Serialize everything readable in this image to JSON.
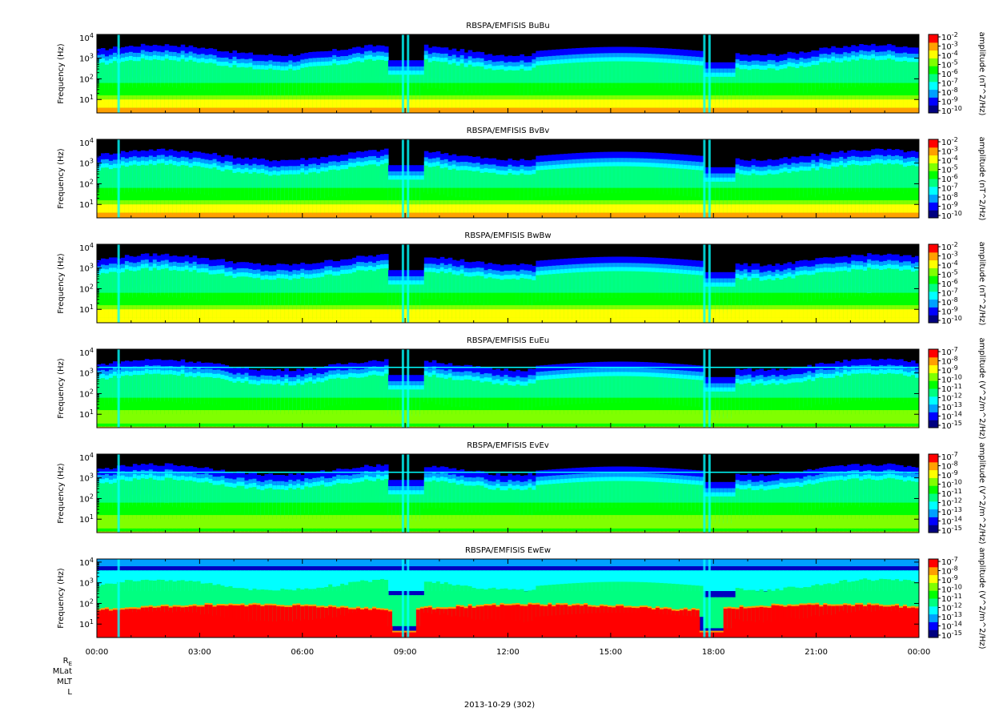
{
  "chart_data": [
    {
      "type": "heatmap",
      "title": "RBSPA/EMFISIS  BuBu",
      "ylabel": "Frequency (Hz)",
      "colorbar_label": "amplitude (nT^2/Hz)",
      "y_scale": "log",
      "y_ticks": [
        "10^1",
        "10^2",
        "10^3",
        "10^4"
      ],
      "colorbar_ticks": [
        "10^-2",
        "10^-3",
        "10^-4",
        "10^-5",
        "10^-6",
        "10^-7",
        "10^-8",
        "10^-9",
        "10^-10"
      ],
      "kind": "B"
    },
    {
      "type": "heatmap",
      "title": "RBSPA/EMFISIS  BvBv",
      "ylabel": "Frequency (Hz)",
      "colorbar_label": "amplitude (nT^2/Hz)",
      "y_scale": "log",
      "y_ticks": [
        "10^1",
        "10^2",
        "10^3",
        "10^4"
      ],
      "colorbar_ticks": [
        "10^-2",
        "10^-3",
        "10^-4",
        "10^-5",
        "10^-6",
        "10^-7",
        "10^-8",
        "10^-9",
        "10^-10"
      ],
      "kind": "B"
    },
    {
      "type": "heatmap",
      "title": "RBSPA/EMFISIS  BwBw",
      "ylabel": "Frequency (Hz)",
      "colorbar_label": "amplitude (nT^2/Hz)",
      "y_scale": "log",
      "y_ticks": [
        "10^1",
        "10^2",
        "10^3",
        "10^4"
      ],
      "colorbar_ticks": [
        "10^-2",
        "10^-3",
        "10^-4",
        "10^-5",
        "10^-6",
        "10^-7",
        "10^-8",
        "10^-9",
        "10^-10"
      ],
      "kind": "B"
    },
    {
      "type": "heatmap",
      "title": "RBSPA/EMFISIS  EuEu",
      "ylabel": "Frequency (Hz)",
      "colorbar_label": "amplitude (V^2/m^2/Hz)",
      "y_scale": "log",
      "y_ticks": [
        "10^1",
        "10^2",
        "10^3",
        "10^4"
      ],
      "colorbar_ticks": [
        "10^-7",
        "10^-8",
        "10^-9",
        "10^-10",
        "10^-11",
        "10^-12",
        "10^-13",
        "10^-14",
        "10^-15"
      ],
      "kind": "E"
    },
    {
      "type": "heatmap",
      "title": "RBSPA/EMFISIS  EvEv",
      "ylabel": "Frequency (Hz)",
      "colorbar_label": "amplitude (V^2/m^2/Hz)",
      "y_scale": "log",
      "y_ticks": [
        "10^1",
        "10^2",
        "10^3",
        "10^4"
      ],
      "colorbar_ticks": [
        "10^-7",
        "10^-8",
        "10^-9",
        "10^-10",
        "10^-11",
        "10^-12",
        "10^-13",
        "10^-14",
        "10^-15"
      ],
      "kind": "E"
    },
    {
      "type": "heatmap",
      "title": "RBSPA/EMFISIS  EwEw",
      "ylabel": "Frequency (Hz)",
      "colorbar_label": "amplitude (V^2/m^2/Hz)",
      "y_scale": "log",
      "y_ticks": [
        "10^1",
        "10^2",
        "10^3",
        "10^4"
      ],
      "colorbar_ticks": [
        "10^-7",
        "10^-8",
        "10^-9",
        "10^-10",
        "10^-11",
        "10^-12",
        "10^-13",
        "10^-14",
        "10^-15"
      ],
      "kind": "Ew"
    }
  ],
  "x_ticks": [
    "00:00",
    "03:00",
    "06:00",
    "09:00",
    "12:00",
    "15:00",
    "18:00",
    "21:00",
    "00:00"
  ],
  "x_range_hours": [
    0,
    24
  ],
  "row_labels": [
    "R_E",
    "MLat",
    "MLT",
    "L"
  ],
  "date_label": "2013-10-29 (302)",
  "colormap": [
    "#000080",
    "#0000ff",
    "#00a0ff",
    "#00ffff",
    "#00ff80",
    "#00ff00",
    "#80ff00",
    "#ffff00",
    "#ffa000",
    "#ff0000"
  ]
}
